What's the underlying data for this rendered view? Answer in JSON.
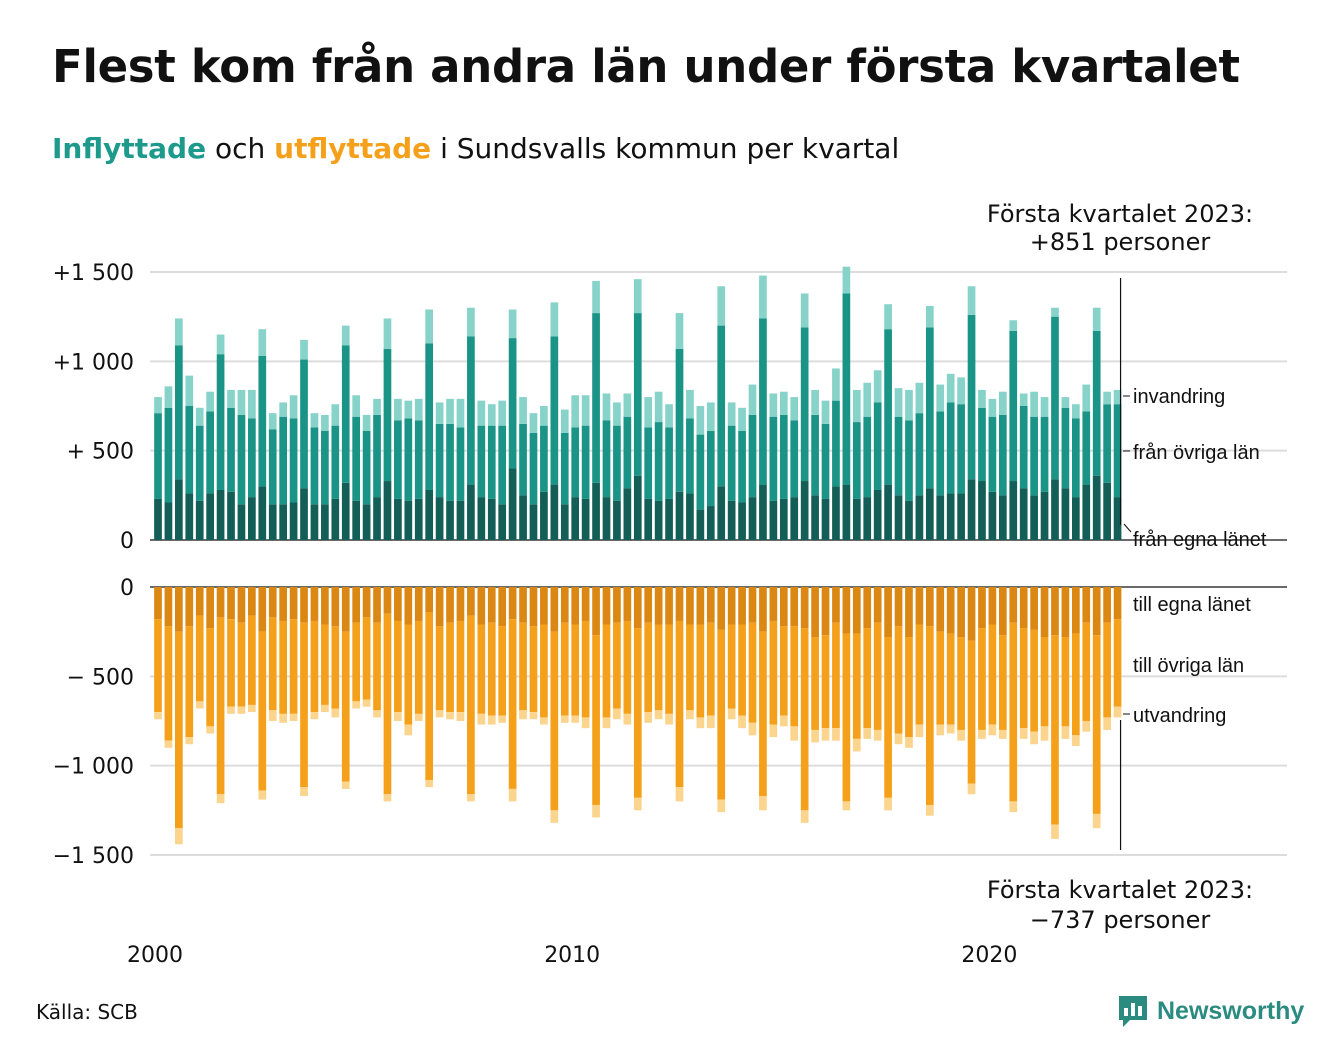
{
  "title": "Flest kom från andra län under första kvartalet",
  "subtitle": {
    "part1": "Inflyttade",
    "part2": " och ",
    "part3": "utflyttade",
    "part4": " i Sundsvalls kommun per kvartal"
  },
  "source": "Källa: SCB",
  "logo_text": "Newsworthy",
  "colors": {
    "in_egna": "#135e57",
    "in_ovriga": "#1a9486",
    "in_invandring": "#87d3c9",
    "out_egna": "#da8713",
    "out_ovriga": "#f5a01a",
    "out_utvandring": "#fbd48e",
    "grid": "#dddddd",
    "subtitle_in": "#1d9a8b",
    "subtitle_out": "#f5a01a"
  },
  "chart_data": {
    "type": "bar",
    "stacked": true,
    "frequency": "quarterly",
    "start": "2000 Q1",
    "end": "2023 Q1",
    "x_ticks": [
      "2000",
      "2010",
      "2020"
    ],
    "upper": {
      "y_ticks": [
        {
          "value": 1500,
          "label": "+1 500"
        },
        {
          "value": 1000,
          "label": "+1 000"
        },
        {
          "value": 500,
          "label": "+  500"
        },
        {
          "value": 0,
          "label": "0"
        }
      ],
      "ylim": [
        0,
        1500
      ],
      "series": [
        {
          "name": "från egna länet",
          "values": [
            230,
            210,
            340,
            260,
            220,
            260,
            280,
            270,
            200,
            240,
            300,
            200,
            200,
            210,
            290,
            200,
            200,
            230,
            320,
            220,
            200,
            240,
            330,
            230,
            220,
            230,
            280,
            240,
            220,
            220,
            310,
            240,
            230,
            200,
            400,
            250,
            200,
            270,
            310,
            200,
            240,
            230,
            320,
            240,
            220,
            290,
            360,
            230,
            220,
            230,
            270,
            260,
            170,
            190,
            300,
            220,
            210,
            240,
            310,
            220,
            230,
            240,
            330,
            250,
            230,
            300,
            310,
            230,
            240,
            280,
            310,
            250,
            220,
            250,
            290,
            250,
            260,
            260,
            340,
            330,
            270,
            250,
            330,
            290,
            250,
            270,
            340,
            290,
            240,
            310,
            360,
            320,
            240
          ]
        },
        {
          "name": "från övriga län",
          "values": [
            480,
            530,
            750,
            490,
            420,
            460,
            760,
            470,
            500,
            440,
            730,
            420,
            490,
            470,
            720,
            430,
            410,
            410,
            770,
            470,
            410,
            460,
            740,
            440,
            460,
            440,
            820,
            410,
            430,
            410,
            830,
            400,
            410,
            440,
            730,
            400,
            400,
            370,
            830,
            400,
            390,
            410,
            950,
            430,
            420,
            400,
            910,
            400,
            440,
            400,
            800,
            420,
            420,
            420,
            900,
            420,
            400,
            460,
            930,
            470,
            470,
            430,
            860,
            450,
            420,
            480,
            1070,
            430,
            450,
            490,
            870,
            440,
            450,
            460,
            900,
            470,
            510,
            500,
            920,
            410,
            420,
            450,
            840,
            460,
            440,
            420,
            910,
            450,
            440,
            410,
            810,
            440,
            520
          ]
        },
        {
          "name": "invandring",
          "values": [
            90,
            120,
            150,
            170,
            100,
            110,
            110,
            100,
            140,
            160,
            150,
            90,
            80,
            130,
            110,
            80,
            90,
            120,
            110,
            120,
            90,
            90,
            170,
            120,
            100,
            120,
            190,
            120,
            140,
            160,
            160,
            140,
            120,
            140,
            160,
            150,
            110,
            110,
            190,
            130,
            180,
            170,
            180,
            150,
            130,
            130,
            190,
            170,
            170,
            130,
            200,
            160,
            160,
            160,
            220,
            130,
            130,
            170,
            240,
            130,
            130,
            130,
            190,
            140,
            130,
            180,
            150,
            180,
            190,
            180,
            140,
            160,
            170,
            170,
            120,
            150,
            160,
            150,
            160,
            100,
            100,
            130,
            60,
            70,
            140,
            110,
            50,
            60,
            80,
            150,
            130,
            70,
            80
          ]
        }
      ]
    },
    "lower": {
      "y_ticks": [
        {
          "value": 0,
          "label": "0"
        },
        {
          "value": -500,
          "label": "−  500"
        },
        {
          "value": -1000,
          "label": "−1 000"
        },
        {
          "value": -1500,
          "label": "−1 500"
        }
      ],
      "ylim": [
        -1500,
        0
      ],
      "series": [
        {
          "name": "till egna länet",
          "values": [
            -180,
            -220,
            -250,
            -220,
            -160,
            -230,
            -170,
            -180,
            -200,
            -160,
            -250,
            -170,
            -190,
            -180,
            -200,
            -190,
            -210,
            -220,
            -250,
            -200,
            -170,
            -200,
            -150,
            -190,
            -210,
            -190,
            -140,
            -220,
            -200,
            -190,
            -160,
            -210,
            -200,
            -220,
            -180,
            -200,
            -220,
            -210,
            -250,
            -200,
            -210,
            -190,
            -270,
            -210,
            -200,
            -190,
            -230,
            -200,
            -210,
            -210,
            -190,
            -210,
            -210,
            -200,
            -240,
            -210,
            -210,
            -200,
            -250,
            -190,
            -220,
            -220,
            -230,
            -280,
            -270,
            -200,
            -260,
            -260,
            -230,
            -200,
            -280,
            -220,
            -280,
            -210,
            -220,
            -250,
            -260,
            -280,
            -300,
            -230,
            -210,
            -270,
            -200,
            -230,
            -240,
            -280,
            -270,
            -280,
            -260,
            -200,
            -270,
            -200,
            -180
          ]
        },
        {
          "name": "till övriga län",
          "values": [
            -520,
            -640,
            -1100,
            -620,
            -480,
            -550,
            -990,
            -490,
            -470,
            -500,
            -890,
            -520,
            -520,
            -530,
            -920,
            -510,
            -450,
            -460,
            -840,
            -440,
            -460,
            -490,
            -1010,
            -510,
            -560,
            -520,
            -940,
            -470,
            -500,
            -510,
            -1000,
            -500,
            -520,
            -500,
            -950,
            -490,
            -480,
            -520,
            -1000,
            -520,
            -510,
            -540,
            -950,
            -520,
            -480,
            -520,
            -950,
            -500,
            -480,
            -500,
            -930,
            -480,
            -520,
            -520,
            -950,
            -470,
            -510,
            -560,
            -920,
            -580,
            -500,
            -560,
            -1020,
            -520,
            -520,
            -590,
            -940,
            -590,
            -560,
            -600,
            -900,
            -600,
            -560,
            -560,
            -1000,
            -520,
            -510,
            -520,
            -800,
            -570,
            -560,
            -530,
            -1000,
            -560,
            -570,
            -500,
            -1060,
            -500,
            -570,
            -550,
            -1000,
            -530,
            -490
          ]
        },
        {
          "name": "utvandring",
          "values": [
            -40,
            -40,
            -90,
            -40,
            -40,
            -40,
            -50,
            -40,
            -40,
            -40,
            -50,
            -60,
            -50,
            -40,
            -50,
            -40,
            -40,
            -50,
            -40,
            -40,
            -40,
            -40,
            -40,
            -50,
            -60,
            -40,
            -40,
            -40,
            -40,
            -50,
            -40,
            -60,
            -50,
            -40,
            -70,
            -50,
            -40,
            -40,
            -70,
            -40,
            -40,
            -60,
            -70,
            -60,
            -60,
            -60,
            -70,
            -60,
            -50,
            -60,
            -80,
            -50,
            -60,
            -70,
            -70,
            -60,
            -70,
            -70,
            -80,
            -70,
            -60,
            -80,
            -70,
            -70,
            -70,
            -70,
            -50,
            -70,
            -60,
            -60,
            -70,
            -60,
            -60,
            -70,
            -60,
            -60,
            -50,
            -60,
            -60,
            -50,
            -60,
            -50,
            -60,
            -60,
            -70,
            -80,
            -80,
            -70,
            -60,
            -60,
            -80,
            -70,
            -60
          ]
        }
      ]
    },
    "segment_labels_upper": [
      "invandring",
      "från övriga län",
      "från egna länet"
    ],
    "segment_labels_lower": [
      "till egna länet",
      "till övriga län",
      "utvandring"
    ],
    "annotation_upper": {
      "line1": "Första kvartalet 2023:",
      "line2": "+851 personer"
    },
    "annotation_lower": {
      "line1": "Första kvartalet 2023:",
      "line2": "−737 personer"
    },
    "grid": true
  }
}
